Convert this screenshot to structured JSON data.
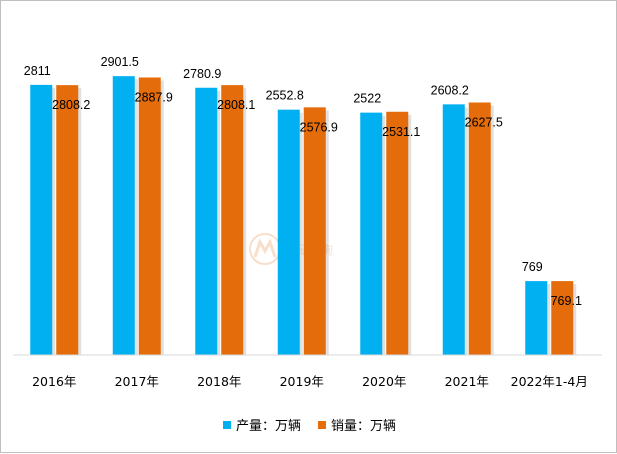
{
  "chart_data": {
    "type": "bar",
    "categories": [
      "2016年",
      "2017年",
      "2018年",
      "2019年",
      "2020年",
      "2021年",
      "2022年1-4月"
    ],
    "series": [
      {
        "name": "产量：万辆",
        "color": "#00B0F0",
        "values": [
          2811,
          2901.5,
          2780.9,
          2552.8,
          2522,
          2608.2,
          769
        ],
        "labels": [
          "2811",
          "2901.5",
          "2780.9",
          "2552.8",
          "2522",
          "2608.2",
          "769"
        ]
      },
      {
        "name": "销量：万辆",
        "color": "#E46C0A",
        "values": [
          2808.2,
          2887.9,
          2808.1,
          2576.9,
          2531.1,
          2627.5,
          769.1
        ],
        "labels": [
          "2808.2",
          "2887.9",
          "2808.1",
          "2576.9",
          "2531.1",
          "2627.5",
          "769.1"
        ]
      }
    ],
    "ylim": [
      0,
      3200
    ],
    "grid": false,
    "legend_position": "bottom"
  },
  "watermark": {
    "text": "智研咨询"
  }
}
